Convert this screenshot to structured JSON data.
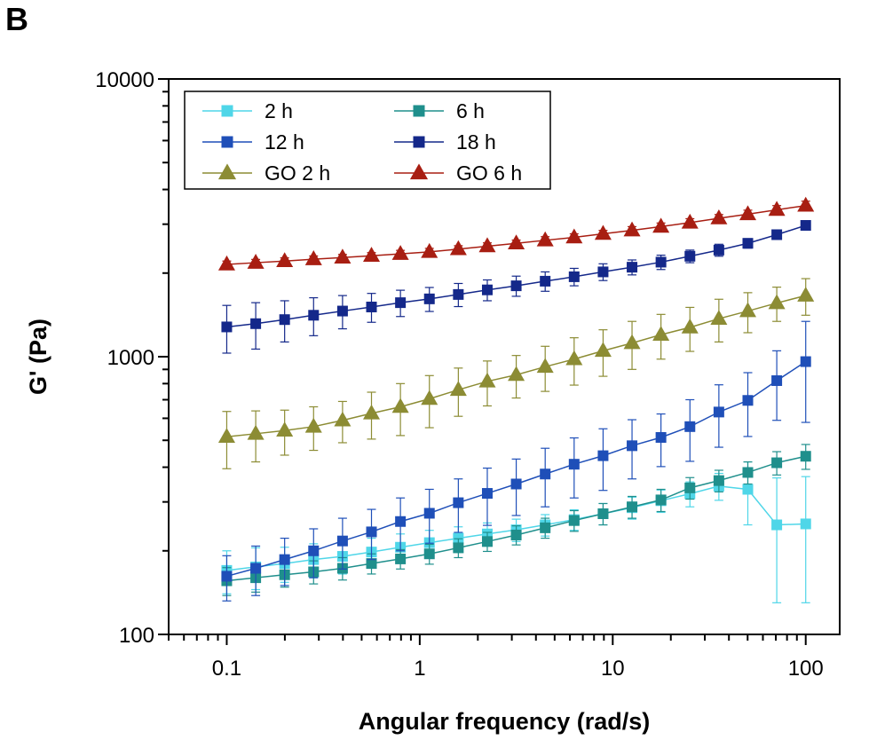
{
  "panel_label": "B",
  "chart_data": {
    "type": "line",
    "title": "",
    "xlabel": "Angular frequency (rad/s)",
    "ylabel": "G' (Pa)",
    "xscale": "log",
    "yscale": "log",
    "xlim": [
      0.05,
      150
    ],
    "ylim": [
      100,
      10000
    ],
    "x_ticks": [
      0.1,
      1,
      10,
      100
    ],
    "x_tick_labels": [
      "0.1",
      "1",
      "10",
      "100"
    ],
    "y_ticks": [
      100,
      1000,
      10000
    ],
    "y_tick_labels": [
      "100",
      "1000",
      "10000"
    ],
    "grid": false,
    "legend": {
      "position": "top-left",
      "columns": 2
    },
    "x": [
      0.1,
      0.1413,
      0.1995,
      0.2818,
      0.3981,
      0.5623,
      0.7943,
      1.122,
      1.585,
      2.239,
      3.162,
      4.467,
      6.31,
      8.913,
      12.59,
      17.78,
      25.12,
      35.48,
      50.12,
      70.79,
      100
    ],
    "series": [
      {
        "name": "2 h",
        "color": "#4fd6e8",
        "marker": "square",
        "values": [
          170,
          175,
          180,
          186,
          191,
          198,
          206,
          214,
          222,
          230,
          238,
          248,
          259,
          272,
          286,
          303,
          321,
          342,
          333,
          248,
          250
        ],
        "errors": [
          30,
          30,
          26,
          26,
          26,
          24,
          24,
          23,
          22,
          22,
          22,
          22,
          22,
          24,
          26,
          28,
          33,
          38,
          85,
          118,
          120
        ]
      },
      {
        "name": "6 h",
        "color": "#1f8f8c",
        "marker": "square",
        "values": [
          156,
          160,
          164,
          168,
          173,
          180,
          187,
          195,
          205,
          216,
          228,
          242,
          257,
          272,
          288,
          305,
          337,
          358,
          383,
          415,
          438
        ],
        "errors": [
          18,
          18,
          16,
          16,
          16,
          15,
          15,
          16,
          16,
          17,
          18,
          20,
          22,
          24,
          26,
          28,
          30,
          32,
          35,
          40,
          45
        ]
      },
      {
        "name": "12 h",
        "color": "#1f4fb8",
        "marker": "square",
        "values": [
          162,
          173,
          186,
          200,
          217,
          234,
          255,
          273,
          298,
          322,
          348,
          378,
          410,
          440,
          478,
          512,
          560,
          632,
          696,
          820,
          960
        ],
        "errors": [
          30,
          35,
          36,
          40,
          45,
          48,
          55,
          60,
          65,
          75,
          80,
          90,
          100,
          110,
          115,
          110,
          140,
          160,
          180,
          230,
          380
        ]
      },
      {
        "name": "18 h",
        "color": "#14288a",
        "marker": "square",
        "values": [
          1280,
          1315,
          1360,
          1410,
          1460,
          1510,
          1565,
          1615,
          1675,
          1740,
          1800,
          1870,
          1940,
          2020,
          2100,
          2190,
          2300,
          2420,
          2560,
          2750,
          2970
        ],
        "errors": [
          250,
          250,
          230,
          220,
          200,
          180,
          170,
          160,
          160,
          150,
          150,
          150,
          140,
          140,
          130,
          130,
          120,
          120,
          100,
          80,
          60
        ]
      },
      {
        "name": "GO 2 h",
        "color": "#8c8c34",
        "marker": "triangle",
        "values": [
          515,
          528,
          542,
          560,
          590,
          625,
          660,
          705,
          760,
          815,
          860,
          920,
          980,
          1050,
          1120,
          1200,
          1275,
          1370,
          1460,
          1560,
          1660
        ],
        "errors": [
          120,
          110,
          100,
          100,
          100,
          120,
          140,
          150,
          150,
          150,
          150,
          170,
          190,
          200,
          220,
          220,
          230,
          240,
          240,
          220,
          250
        ]
      },
      {
        "name": "GO 6 h",
        "color": "#a81e12",
        "marker": "triangle",
        "values": [
          2150,
          2180,
          2210,
          2245,
          2275,
          2310,
          2345,
          2385,
          2440,
          2500,
          2560,
          2625,
          2690,
          2770,
          2850,
          2940,
          3040,
          3150,
          3260,
          3380,
          3500
        ],
        "errors": [
          60,
          60,
          60,
          60,
          60,
          60,
          70,
          70,
          70,
          70,
          70,
          80,
          80,
          80,
          90,
          90,
          100,
          100,
          110,
          120,
          130
        ]
      }
    ]
  }
}
